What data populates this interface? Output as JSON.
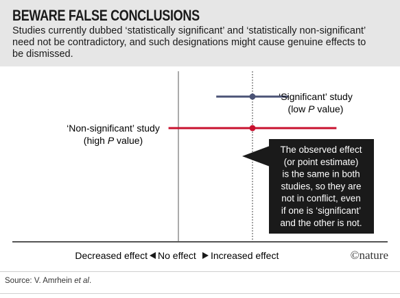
{
  "header": {
    "title": "BEWARE FALSE CONCLUSIONS",
    "subtitle": "Studies currently dubbed ‘statistically significant’ and ‘statistically non-significant’ need not be contradictory, and such designations might cause genuine effects to be dismissed."
  },
  "chart_data": {
    "type": "forest",
    "xlim": [
      -1,
      1
    ],
    "no_effect": 0,
    "observed_effect": 0.45,
    "series": [
      {
        "name_line1": "‘Significant’ study",
        "name_line2_prefix": "(low ",
        "name_line2_italic": "P",
        "name_line2_suffix": " value)",
        "estimate": 0.45,
        "ci": [
          0.23,
          0.67
        ],
        "color": "#4a5275"
      },
      {
        "name_line1": "‘Non-significant’ study",
        "name_line2_prefix": "(high ",
        "name_line2_italic": "P",
        "name_line2_suffix": " value)",
        "estimate": 0.45,
        "ci": [
          -0.06,
          0.96
        ],
        "color": "#c8102e"
      }
    ],
    "axis": {
      "left_label": "Decreased effect",
      "center_label": "No effect",
      "right_label": "Increased effect"
    },
    "annotation": "The observed effect (or point estimate) is the same in both studies, so they are not in conflict, even if one is ‘significant’ and the other is not.",
    "annotation_lines": [
      "The observed effect",
      "(or point estimate)",
      "is the same in both",
      "studies, so they are",
      "not in conflict, even",
      "if one is ‘significant’",
      "and the other is not."
    ]
  },
  "branding": {
    "logo": "©nature"
  },
  "source": {
    "prefix": "Source: V. Amrhein ",
    "italic": "et al",
    "suffix": "."
  },
  "colors": {
    "header_band": "#e6e6e6",
    "significant": "#4a5275",
    "non_significant": "#c8102e",
    "annotation_box": "#1a1a1a"
  }
}
